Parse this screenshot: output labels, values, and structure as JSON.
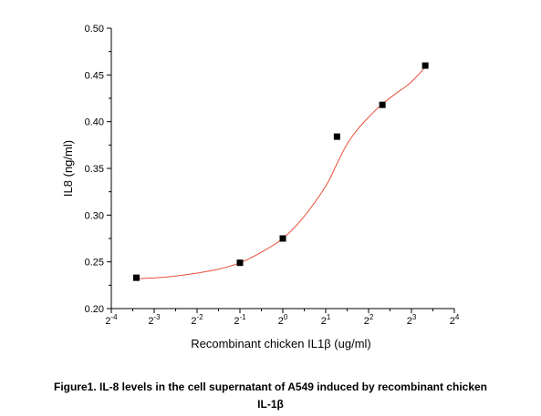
{
  "chart_data": {
    "type": "scatter",
    "xlabel": "Recombinant chicken IL1β (ug/ml)",
    "ylabel": "IL8 (ng/ml)",
    "x_scale": "log2",
    "x_tick_labels": [
      {
        "base": "2",
        "exp": "-4"
      },
      {
        "base": "2",
        "exp": "-3"
      },
      {
        "base": "2",
        "exp": "-2"
      },
      {
        "base": "2",
        "exp": "-1"
      },
      {
        "base": "2",
        "exp": "0"
      },
      {
        "base": "2",
        "exp": "1"
      },
      {
        "base": "2",
        "exp": "2"
      },
      {
        "base": "2",
        "exp": "3"
      },
      {
        "base": "2",
        "exp": "4"
      }
    ],
    "xlim": [
      0.0625,
      16
    ],
    "ylim": [
      0.2,
      0.5
    ],
    "y_ticks": [
      "0.20",
      "0.25",
      "0.30",
      "0.35",
      "0.40",
      "0.45",
      "0.50"
    ],
    "grid": false,
    "series": [
      {
        "marker": "square",
        "marker_color": "#000000",
        "x": [
          0.09375,
          0.5,
          1,
          2.4,
          5,
          10
        ],
        "y": [
          0.233,
          0.249,
          0.275,
          0.384,
          0.418,
          0.46
        ]
      }
    ],
    "fit_curve": {
      "type": "four-parameter logistic",
      "color": "#e8503a",
      "points": [
        [
          0.09375,
          0.232
        ],
        [
          0.13,
          0.233
        ],
        [
          0.18,
          0.235
        ],
        [
          0.25,
          0.238
        ],
        [
          0.35,
          0.242
        ],
        [
          0.5,
          0.249
        ],
        [
          0.7,
          0.26
        ],
        [
          1,
          0.275
        ],
        [
          1.4,
          0.298
        ],
        [
          2.0,
          0.331
        ],
        [
          2.4,
          0.355
        ],
        [
          2.8,
          0.375
        ],
        [
          3.4,
          0.393
        ],
        [
          4.2,
          0.408
        ],
        [
          5,
          0.419
        ],
        [
          6.2,
          0.43
        ],
        [
          7.5,
          0.439
        ],
        [
          8.8,
          0.449
        ],
        [
          10,
          0.459
        ]
      ]
    }
  },
  "caption": {
    "line1": "Figure1. IL-8 levels in the cell supernatant of A549 induced by recombinant chicken",
    "line2": "IL-1β"
  }
}
